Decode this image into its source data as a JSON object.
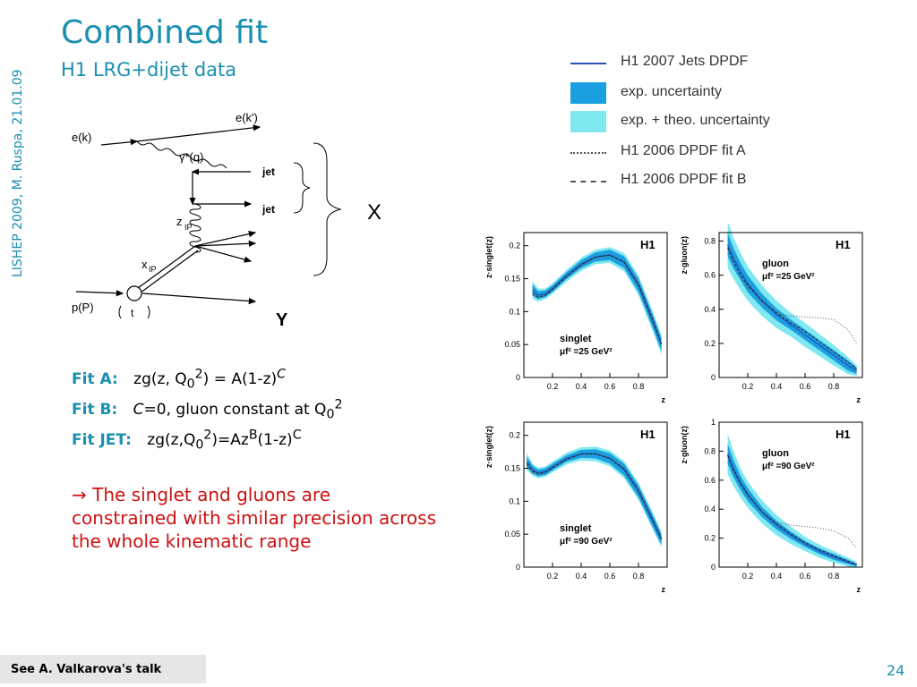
{
  "side_label": "LISHEP 2009, M. Ruspa, 21.01.09",
  "title": "Combined fit",
  "subtitle": "H1 LRG+dijet data",
  "diagram": {
    "e_in": "e(k)",
    "e_out": "e(k')",
    "photon": "γ*(q)",
    "jet1": "jet",
    "jet2": "jet",
    "zP": "z",
    "xP": "x",
    "pomeron_sub": "IP",
    "proton": "p(P)",
    "t": "t",
    "X": "X",
    "Y": "Y"
  },
  "fits": [
    {
      "label": "Fit A:",
      "formula": "zg(z, Q0²) = A(1-z)C"
    },
    {
      "label": "Fit B:",
      "formula": "C=0, gluon constant at Q0²"
    },
    {
      "label": "Fit JET:",
      "formula": "zg(z,Q0²)=AzB(1-z)C"
    }
  ],
  "conclusion": "→ The singlet and gluons are constrained with similar precision across the whole kinematic range",
  "legend": [
    {
      "label": "H1 2007 Jets DPDF",
      "style": "line",
      "color": "#2b4fb8"
    },
    {
      "label": "exp. uncertainty",
      "style": "box",
      "color": "#1aa0e0"
    },
    {
      "label": "exp. + theo. uncertainty",
      "style": "box",
      "color": "#7fe8f0"
    },
    {
      "label": "H1 2006 DPDF fit A",
      "style": "dotted",
      "color": "#555555"
    },
    {
      "label": "H1 2006 DPDF fit B",
      "style": "dashed",
      "color": "#555555"
    }
  ],
  "chart_data": [
    {
      "type": "line",
      "panel": "singlet-25",
      "ylabel": "z·singlet(z)",
      "xlabel": "z",
      "tag": "H1",
      "label1": "singlet",
      "label2": "μf² =25 GeV²",
      "xlim": [
        0,
        1
      ],
      "ylim": [
        0,
        0.22
      ],
      "xticks": [
        "0.2",
        "0.4",
        "0.6",
        "0.8"
      ],
      "yticks": [
        "0",
        "0.05",
        "0.1",
        "0.15",
        "0.2"
      ],
      "x": [
        0.06,
        0.1,
        0.15,
        0.2,
        0.3,
        0.4,
        0.5,
        0.6,
        0.7,
        0.8,
        0.9,
        0.96
      ],
      "central": [
        0.133,
        0.125,
        0.127,
        0.135,
        0.155,
        0.172,
        0.183,
        0.186,
        0.175,
        0.14,
        0.085,
        0.05
      ],
      "exp_err": [
        0.008,
        0.006,
        0.005,
        0.005,
        0.005,
        0.006,
        0.007,
        0.008,
        0.009,
        0.01,
        0.01,
        0.01
      ],
      "tot_err": [
        0.013,
        0.01,
        0.008,
        0.008,
        0.009,
        0.01,
        0.011,
        0.012,
        0.014,
        0.015,
        0.015,
        0.015
      ],
      "fitA": [
        0.125,
        0.12,
        0.124,
        0.132,
        0.152,
        0.17,
        0.182,
        0.185,
        0.176,
        0.143,
        0.09,
        0.052
      ],
      "fitB": [
        0.128,
        0.122,
        0.125,
        0.134,
        0.154,
        0.171,
        0.183,
        0.186,
        0.175,
        0.141,
        0.087,
        0.051
      ]
    },
    {
      "type": "line",
      "panel": "gluon-25",
      "ylabel": "z·gluon(z)",
      "xlabel": "z",
      "tag": "H1",
      "label1": "gluon",
      "label2": "μf² =25 GeV²",
      "xlim": [
        0,
        1
      ],
      "ylim": [
        0,
        0.85
      ],
      "xticks": [
        "0.2",
        "0.4",
        "0.6",
        "0.8"
      ],
      "yticks": [
        "0",
        "0.2",
        "0.4",
        "0.6",
        "0.8"
      ],
      "x": [
        0.06,
        0.1,
        0.15,
        0.2,
        0.3,
        0.4,
        0.5,
        0.6,
        0.7,
        0.8,
        0.9,
        0.96
      ],
      "central": [
        0.78,
        0.7,
        0.62,
        0.55,
        0.45,
        0.37,
        0.31,
        0.25,
        0.19,
        0.13,
        0.07,
        0.04
      ],
      "exp_err": [
        0.07,
        0.06,
        0.05,
        0.05,
        0.04,
        0.035,
        0.03,
        0.03,
        0.03,
        0.03,
        0.03,
        0.02
      ],
      "tot_err": [
        0.14,
        0.12,
        0.11,
        0.1,
        0.09,
        0.08,
        0.07,
        0.07,
        0.065,
        0.06,
        0.05,
        0.03
      ],
      "fitA": [
        0.77,
        0.68,
        0.6,
        0.53,
        0.44,
        0.38,
        0.36,
        0.355,
        0.35,
        0.34,
        0.28,
        0.2
      ],
      "fitB": [
        0.76,
        0.68,
        0.6,
        0.54,
        0.45,
        0.38,
        0.32,
        0.27,
        0.21,
        0.15,
        0.09,
        0.05
      ]
    },
    {
      "type": "line",
      "panel": "singlet-90",
      "ylabel": "z·singlet(z)",
      "xlabel": "z",
      "tag": "H1",
      "label1": "singlet",
      "label2": "μf² =90 GeV²",
      "xlim": [
        0,
        1
      ],
      "ylim": [
        0,
        0.22
      ],
      "xticks": [
        "0.2",
        "0.4",
        "0.6",
        "0.8"
      ],
      "yticks": [
        "0",
        "0.05",
        "0.1",
        "0.15",
        "0.2"
      ],
      "x": [
        0.02,
        0.06,
        0.1,
        0.15,
        0.2,
        0.3,
        0.4,
        0.5,
        0.6,
        0.7,
        0.8,
        0.9,
        0.96
      ],
      "central": [
        0.16,
        0.148,
        0.143,
        0.145,
        0.152,
        0.165,
        0.172,
        0.172,
        0.165,
        0.148,
        0.115,
        0.07,
        0.042
      ],
      "exp_err": [
        0.008,
        0.006,
        0.005,
        0.005,
        0.005,
        0.005,
        0.006,
        0.007,
        0.008,
        0.009,
        0.009,
        0.009,
        0.008
      ],
      "tot_err": [
        0.013,
        0.009,
        0.008,
        0.008,
        0.008,
        0.009,
        0.01,
        0.011,
        0.012,
        0.013,
        0.013,
        0.013,
        0.012
      ],
      "fitA": [
        0.153,
        0.143,
        0.14,
        0.142,
        0.15,
        0.164,
        0.171,
        0.172,
        0.166,
        0.15,
        0.118,
        0.073,
        0.044
      ],
      "fitB": [
        0.157,
        0.146,
        0.142,
        0.144,
        0.151,
        0.164,
        0.172,
        0.172,
        0.165,
        0.149,
        0.116,
        0.071,
        0.043
      ]
    },
    {
      "type": "line",
      "panel": "gluon-90",
      "ylabel": "z·gluon(z)",
      "xlabel": "z",
      "tag": "H1",
      "label1": "gluon",
      "label2": "μf² =90 GeV²",
      "xlim": [
        0,
        1
      ],
      "ylim": [
        0,
        1
      ],
      "xticks": [
        "0.2",
        "0.4",
        "0.6",
        "0.8"
      ],
      "yticks": [
        "0",
        "0.2",
        "0.4",
        "0.6",
        "0.8",
        "1"
      ],
      "x": [
        0.06,
        0.1,
        0.15,
        0.2,
        0.3,
        0.4,
        0.5,
        0.6,
        0.7,
        0.8,
        0.9,
        0.96
      ],
      "central": [
        0.78,
        0.68,
        0.58,
        0.5,
        0.38,
        0.29,
        0.22,
        0.16,
        0.11,
        0.07,
        0.035,
        0.015
      ],
      "exp_err": [
        0.07,
        0.06,
        0.05,
        0.045,
        0.035,
        0.03,
        0.025,
        0.02,
        0.02,
        0.02,
        0.015,
        0.01
      ],
      "tot_err": [
        0.14,
        0.12,
        0.1,
        0.09,
        0.08,
        0.07,
        0.06,
        0.05,
        0.045,
        0.04,
        0.03,
        0.02
      ],
      "fitA": [
        0.77,
        0.66,
        0.57,
        0.49,
        0.38,
        0.31,
        0.29,
        0.28,
        0.27,
        0.25,
        0.2,
        0.13
      ],
      "fitB": [
        0.77,
        0.67,
        0.58,
        0.5,
        0.38,
        0.3,
        0.23,
        0.17,
        0.12,
        0.08,
        0.04,
        0.02
      ]
    }
  ],
  "footer": "See A. Valkarova's talk",
  "page_number": "24"
}
